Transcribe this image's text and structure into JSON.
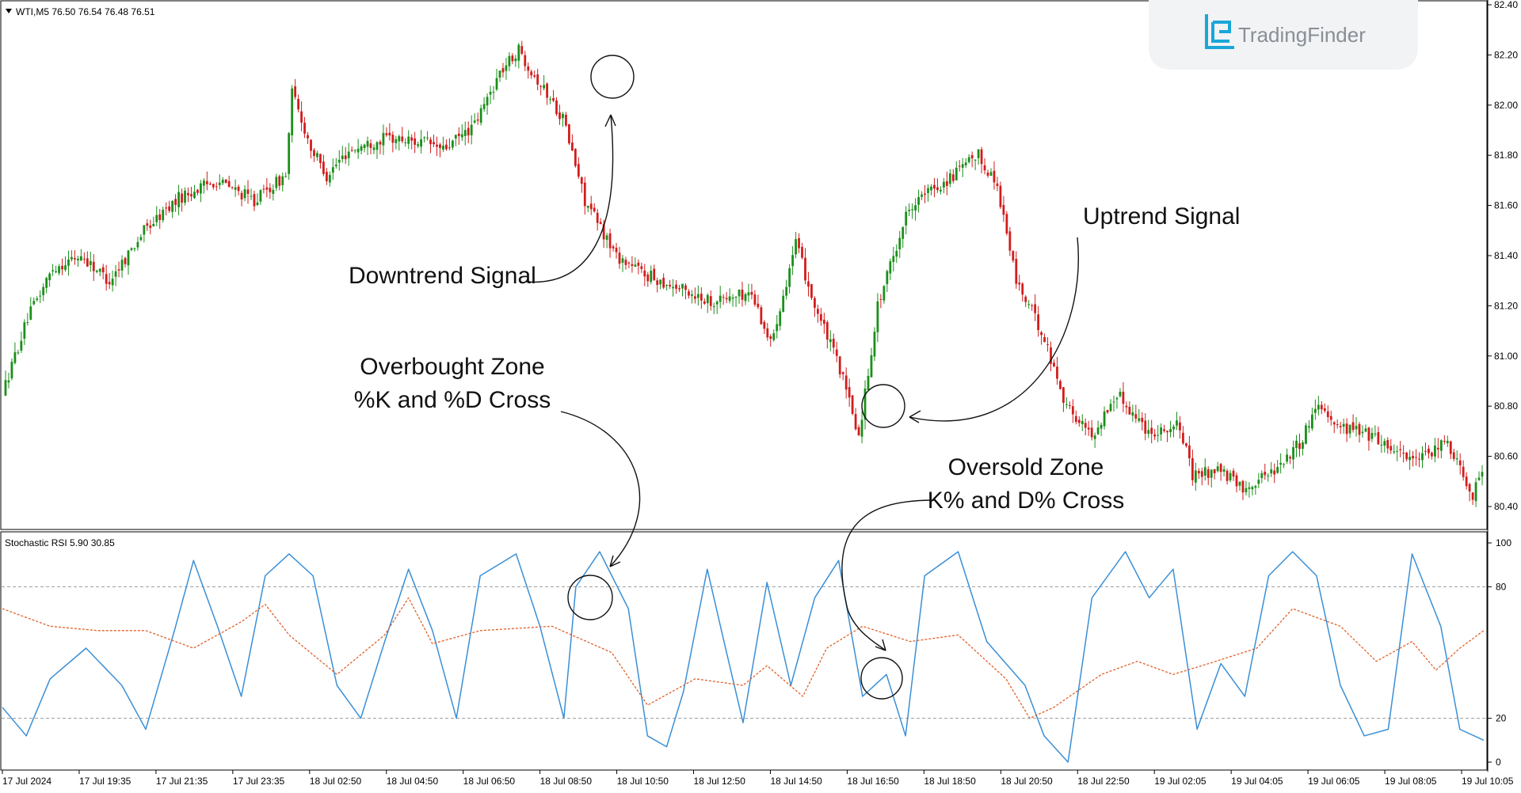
{
  "window": {
    "symbol_header": "WTI,M5  76.50 76.54 76.48 76.51"
  },
  "logo": {
    "text": "TradingFinder",
    "icon": "tradingfinder-logo-icon",
    "accent": "#1aa7d8"
  },
  "colors": {
    "bull": "#1a8f1a",
    "bear": "#d21c1c",
    "k_line": "#3a8fd6",
    "d_line": "#e0612a",
    "grid": "#9a9a9a",
    "frame": "#000000"
  },
  "annotations": {
    "downtrend": "Downtrend Signal",
    "uptrend": "Uptrend Signal",
    "overbought_line1": "Overbought Zone",
    "overbought_line2": "%K and %D Cross",
    "oversold_line1": "Oversold Zone",
    "oversold_line2": "K% and D% Cross"
  },
  "chart_data": [
    {
      "type": "candlestick",
      "title": "WTI,M5  76.50 76.54 76.48 76.51",
      "ylim": [
        80.3,
        82.4
      ],
      "y_ticks": [
        "82.40",
        "82.20",
        "82.00",
        "81.80",
        "81.60",
        "81.40",
        "81.20",
        "81.00",
        "80.80",
        "80.60",
        "80.40"
      ],
      "x_ticks": [
        "17 Jul 2024",
        "17 Jul 19:35",
        "17 Jul 21:35",
        "17 Jul 23:35",
        "18 Jul 02:50",
        "18 Jul 04:50",
        "18 Jul 06:50",
        "18 Jul 08:50",
        "18 Jul 10:50",
        "18 Jul 12:50",
        "18 Jul 14:50",
        "18 Jul 16:50",
        "18 Jul 18:50",
        "18 Jul 20:50",
        "18 Jul 22:50",
        "19 Jul 02:05",
        "19 Jul 04:05",
        "19 Jul 06:05",
        "19 Jul 08:05",
        "19 Jul 10:05"
      ],
      "price_path": [
        [
          0,
          80.85
        ],
        [
          8,
          81.15
        ],
        [
          16,
          81.35
        ],
        [
          25,
          81.4
        ],
        [
          34,
          81.3
        ],
        [
          45,
          81.5
        ],
        [
          56,
          81.63
        ],
        [
          68,
          81.7
        ],
        [
          80,
          81.62
        ],
        [
          90,
          81.72
        ],
        [
          92,
          82.05
        ],
        [
          98,
          81.83
        ],
        [
          103,
          81.72
        ],
        [
          110,
          81.82
        ],
        [
          122,
          81.87
        ],
        [
          135,
          81.85
        ],
        [
          140,
          81.82
        ],
        [
          150,
          81.92
        ],
        [
          158,
          82.13
        ],
        [
          164,
          82.22
        ],
        [
          170,
          82.1
        ],
        [
          178,
          81.95
        ],
        [
          185,
          81.62
        ],
        [
          195,
          81.4
        ],
        [
          205,
          81.32
        ],
        [
          215,
          81.27
        ],
        [
          225,
          81.22
        ],
        [
          238,
          81.25
        ],
        [
          244,
          81.05
        ],
        [
          252,
          81.45
        ],
        [
          258,
          81.2
        ],
        [
          266,
          80.95
        ],
        [
          272,
          80.68
        ],
        [
          278,
          81.2
        ],
        [
          288,
          81.6
        ],
        [
          300,
          81.7
        ],
        [
          310,
          81.8
        ],
        [
          316,
          81.68
        ],
        [
          322,
          81.3
        ],
        [
          330,
          81.1
        ],
        [
          338,
          80.8
        ],
        [
          346,
          80.68
        ],
        [
          354,
          80.85
        ],
        [
          364,
          80.7
        ],
        [
          374,
          80.72
        ],
        [
          378,
          80.52
        ],
        [
          386,
          80.55
        ],
        [
          394,
          80.47
        ],
        [
          404,
          80.55
        ],
        [
          412,
          80.65
        ],
        [
          418,
          80.82
        ],
        [
          424,
          80.72
        ],
        [
          432,
          80.7
        ],
        [
          442,
          80.63
        ],
        [
          450,
          80.58
        ],
        [
          459,
          80.66
        ],
        [
          467,
          80.45
        ],
        [
          470,
          80.55
        ]
      ],
      "candle_count": 470
    },
    {
      "type": "line",
      "title": "Stochastic RSI 5.90 30.85",
      "ylim": [
        0,
        100
      ],
      "y_ticks": [
        "100",
        "80",
        "20",
        "0"
      ],
      "levels": [
        80,
        20
      ],
      "series": [
        {
          "name": "%K",
          "style": "solid",
          "points": [
            [
              0,
              25
            ],
            [
              10,
              12
            ],
            [
              20,
              38
            ],
            [
              35,
              52
            ],
            [
              50,
              35
            ],
            [
              60,
              15
            ],
            [
              72,
              60
            ],
            [
              80,
              92
            ],
            [
              90,
              62
            ],
            [
              100,
              30
            ],
            [
              110,
              85
            ],
            [
              120,
              95
            ],
            [
              130,
              85
            ],
            [
              140,
              35
            ],
            [
              150,
              20
            ],
            [
              160,
              55
            ],
            [
              170,
              88
            ],
            [
              180,
              60
            ],
            [
              190,
              20
            ],
            [
              200,
              85
            ],
            [
              215,
              95
            ],
            [
              225,
              62
            ],
            [
              235,
              20
            ],
            [
              240,
              80
            ],
            [
              250,
              96
            ],
            [
              262,
              70
            ],
            [
              270,
              12
            ],
            [
              278,
              7
            ],
            [
              285,
              32
            ],
            [
              295,
              88
            ],
            [
              302,
              55
            ],
            [
              310,
              18
            ],
            [
              320,
              82
            ],
            [
              330,
              35
            ],
            [
              340,
              75
            ],
            [
              350,
              92
            ],
            [
              360,
              30
            ],
            [
              370,
              40
            ],
            [
              378,
              12
            ],
            [
              386,
              85
            ],
            [
              400,
              96
            ],
            [
              412,
              55
            ],
            [
              420,
              45
            ],
            [
              428,
              35
            ],
            [
              436,
              12
            ],
            [
              446,
              0
            ],
            [
              456,
              75
            ],
            [
              470,
              96
            ],
            [
              480,
              75
            ],
            [
              490,
              88
            ],
            [
              500,
              15
            ],
            [
              510,
              45
            ],
            [
              520,
              30
            ],
            [
              530,
              85
            ],
            [
              540,
              96
            ],
            [
              550,
              85
            ],
            [
              560,
              35
            ],
            [
              570,
              12
            ],
            [
              580,
              15
            ],
            [
              590,
              95
            ],
            [
              602,
              62
            ],
            [
              610,
              15
            ],
            [
              620,
              10
            ]
          ],
          "total_span": 620
        },
        {
          "name": "%D",
          "style": "dotted",
          "points": [
            [
              0,
              70
            ],
            [
              20,
              62
            ],
            [
              40,
              60
            ],
            [
              60,
              60
            ],
            [
              80,
              52
            ],
            [
              100,
              64
            ],
            [
              110,
              72
            ],
            [
              120,
              58
            ],
            [
              140,
              40
            ],
            [
              160,
              58
            ],
            [
              170,
              75
            ],
            [
              180,
              54
            ],
            [
              200,
              60
            ],
            [
              230,
              62
            ],
            [
              255,
              50
            ],
            [
              270,
              26
            ],
            [
              290,
              38
            ],
            [
              310,
              35
            ],
            [
              320,
              44
            ],
            [
              335,
              30
            ],
            [
              345,
              52
            ],
            [
              360,
              62
            ],
            [
              380,
              55
            ],
            [
              400,
              58
            ],
            [
              420,
              38
            ],
            [
              430,
              20
            ],
            [
              440,
              25
            ],
            [
              460,
              40
            ],
            [
              475,
              46
            ],
            [
              490,
              40
            ],
            [
              505,
              45
            ],
            [
              525,
              52
            ],
            [
              540,
              70
            ],
            [
              560,
              62
            ],
            [
              575,
              46
            ],
            [
              590,
              55
            ],
            [
              600,
              42
            ],
            [
              610,
              52
            ],
            [
              620,
              60
            ]
          ],
          "total_span": 620
        }
      ]
    }
  ]
}
